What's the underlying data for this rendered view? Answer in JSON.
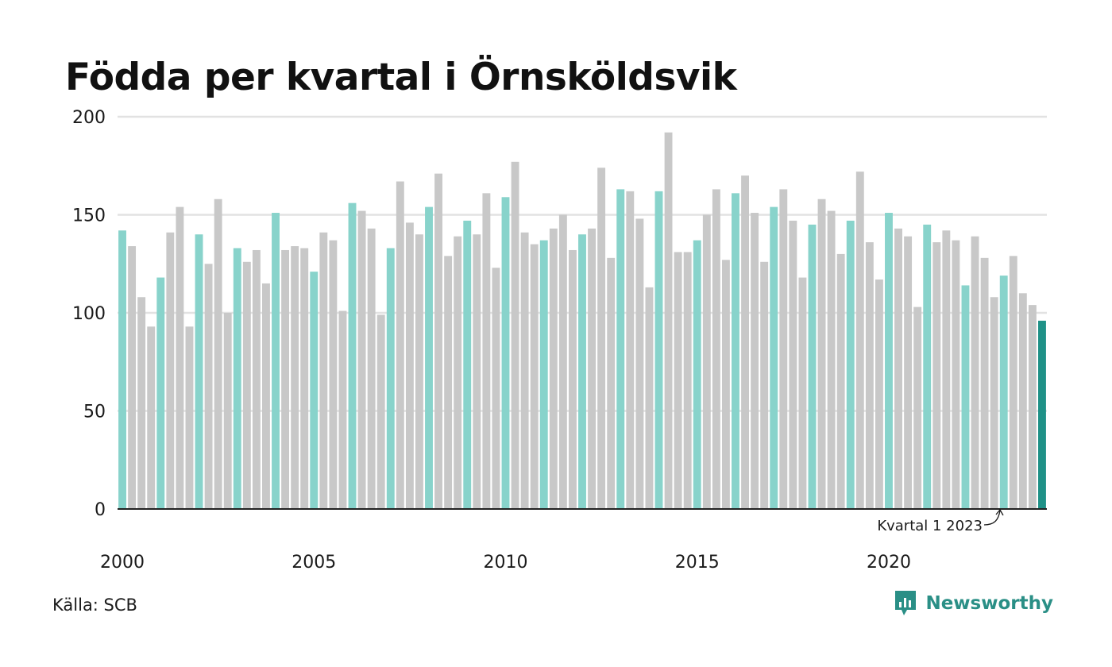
{
  "title": "Födda per kvartal i Örnsköldsvik",
  "source": "Källa: SCB",
  "brand": {
    "name": "Newsworthy",
    "icon": "newsworthy-logo-icon"
  },
  "colors": {
    "highlight_q1": "#88d3cb",
    "other": "#c8c8c8",
    "latest": "#1f9187",
    "grid": "#e2e2e2",
    "axis": "#222222",
    "brand": "#2a8f86"
  },
  "chart_data": {
    "type": "bar",
    "title": "Födda per kvartal i Örnsköldsvik",
    "xlabel": "",
    "ylabel": "",
    "ylim": [
      0,
      200
    ],
    "yticks": [
      0,
      50,
      100,
      150,
      200
    ],
    "xtick_labels": [
      "2000",
      "2005",
      "2010",
      "2015",
      "2020"
    ],
    "grid": true,
    "start_year": 2000,
    "values": [
      142,
      134,
      108,
      93,
      118,
      141,
      154,
      93,
      140,
      125,
      158,
      100,
      133,
      126,
      132,
      115,
      151,
      132,
      134,
      133,
      121,
      141,
      137,
      101,
      156,
      152,
      143,
      99,
      133,
      167,
      146,
      140,
      154,
      171,
      129,
      139,
      147,
      140,
      161,
      123,
      159,
      177,
      141,
      135,
      137,
      143,
      150,
      132,
      140,
      143,
      174,
      128,
      163,
      162,
      148,
      113,
      162,
      192,
      131,
      131,
      137,
      150,
      163,
      127,
      161,
      170,
      151,
      126,
      154,
      163,
      147,
      118,
      145,
      158,
      152,
      130,
      147,
      172,
      136,
      117,
      151,
      143,
      139,
      103,
      145,
      136,
      142,
      137,
      114,
      139,
      128,
      108,
      119,
      129,
      110,
      104,
      96
    ],
    "annotation": {
      "text": "Kvartal 1 2023",
      "value": 96
    }
  }
}
